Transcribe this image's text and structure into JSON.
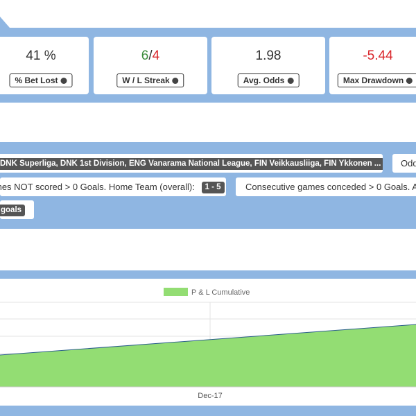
{
  "stats": [
    {
      "value": "41 %",
      "label": "% Bet Lost"
    },
    {
      "value_win": "6",
      "value_sep": "/",
      "value_loss": "4",
      "label": "W / L Streak"
    },
    {
      "value": "1.98",
      "label": "Avg. Odds"
    },
    {
      "value": "-5.44",
      "label": "Max Drawdown"
    }
  ],
  "filters": {
    "leagues": "DNK Superliga, DNK 1st Division, ENG Vanarama National League, FIN Veikkausliiga, FIN Ykkonen ...",
    "odds": "Odd",
    "rule1_text": "mes NOT scored > 0 Goals. Home Team (overall):",
    "rule1_badge": "1 - 5",
    "rule2_text": "Consecutive games conceded > 0 Goals. Av",
    "rule3_badge": "goals"
  },
  "chart": {
    "legend": "P & L Cumulative",
    "x_label": "Dec-17"
  }
}
